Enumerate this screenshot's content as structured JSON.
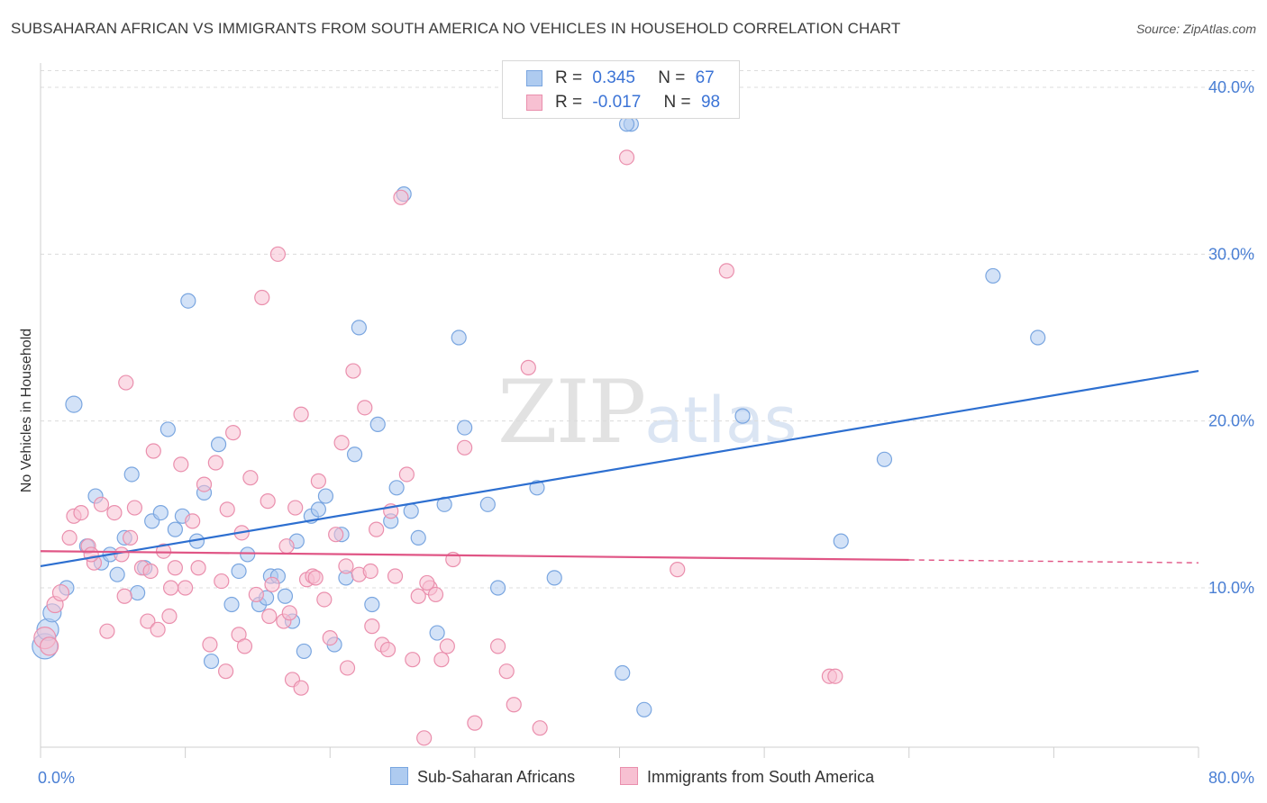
{
  "title": "SUBSAHARAN AFRICAN VS IMMIGRANTS FROM SOUTH AMERICA NO VEHICLES IN HOUSEHOLD CORRELATION CHART",
  "source": "Source: ZipAtlas.com",
  "watermark": {
    "zip": "ZIP",
    "atlas": "atlas"
  },
  "legend": {
    "rows": [
      {
        "r_label": "R =",
        "r_value": "0.345",
        "n_label": "N =",
        "n_value": "67",
        "color": "#aecbf0",
        "border": "#7aa6e0"
      },
      {
        "r_label": "R =",
        "r_value": "-0.017",
        "n_label": "N =",
        "n_value": "98",
        "color": "#f7c0d2",
        "border": "#ea8fad"
      }
    ]
  },
  "bottom_legend": {
    "series1": "Sub-Saharan Africans",
    "series2": "Immigrants from South America"
  },
  "chart_data": {
    "type": "scatter",
    "title": "SUBSAHARAN AFRICAN VS IMMIGRANTS FROM SOUTH AMERICA NO VEHICLES IN HOUSEHOLD CORRELATION CHART",
    "xlabel": "",
    "ylabel": "No Vehicles in Household",
    "xlim": [
      0,
      80
    ],
    "ylim": [
      0,
      41
    ],
    "x_tick_labels": [
      "0.0%",
      "80.0%"
    ],
    "y_ticks": [
      10,
      20,
      30,
      40
    ],
    "y_tick_labels": [
      "10.0%",
      "20.0%",
      "30.0%",
      "40.0%"
    ],
    "grid": true,
    "series": [
      {
        "name": "Sub-Saharan Africans",
        "color": "#7aa6e0",
        "fill": "#aecbf0",
        "trend": {
          "x": [
            0,
            80
          ],
          "y": [
            11.3,
            23.0
          ],
          "color": "#2d6fd0",
          "dash_from": null
        },
        "points": [
          [
            0.3,
            6.5,
            14
          ],
          [
            0.5,
            7.5,
            12
          ],
          [
            0.8,
            8.5,
            10
          ],
          [
            1.8,
            10.0,
            8
          ],
          [
            2.3,
            21.0,
            9
          ],
          [
            3.2,
            12.5,
            8
          ],
          [
            3.8,
            15.5,
            8
          ],
          [
            4.2,
            11.5,
            8
          ],
          [
            4.8,
            12.0,
            8
          ],
          [
            5.3,
            10.8,
            8
          ],
          [
            5.8,
            13.0,
            8
          ],
          [
            6.3,
            16.8,
            8
          ],
          [
            6.7,
            9.7,
            8
          ],
          [
            7.2,
            11.2,
            8
          ],
          [
            7.7,
            14.0,
            8
          ],
          [
            8.3,
            14.5,
            8
          ],
          [
            8.8,
            19.5,
            8
          ],
          [
            9.3,
            13.5,
            8
          ],
          [
            9.8,
            14.3,
            8
          ],
          [
            10.2,
            27.2,
            8
          ],
          [
            10.8,
            12.8,
            8
          ],
          [
            11.3,
            15.7,
            8
          ],
          [
            11.8,
            5.6,
            8
          ],
          [
            12.3,
            18.6,
            8
          ],
          [
            13.2,
            9.0,
            8
          ],
          [
            13.7,
            11.0,
            8
          ],
          [
            14.3,
            12.0,
            8
          ],
          [
            15.1,
            9.0,
            8
          ],
          [
            15.6,
            9.4,
            8
          ],
          [
            15.9,
            10.7,
            8
          ],
          [
            16.4,
            10.7,
            8
          ],
          [
            16.9,
            9.5,
            8
          ],
          [
            17.4,
            8.0,
            8
          ],
          [
            17.7,
            12.8,
            8
          ],
          [
            18.2,
            6.2,
            8
          ],
          [
            18.7,
            14.3,
            8
          ],
          [
            19.2,
            14.7,
            8
          ],
          [
            19.7,
            15.5,
            8
          ],
          [
            20.3,
            6.6,
            8
          ],
          [
            20.8,
            13.2,
            8
          ],
          [
            21.1,
            10.6,
            8
          ],
          [
            21.7,
            18.0,
            8
          ],
          [
            22.0,
            25.6,
            8
          ],
          [
            22.9,
            9.0,
            8
          ],
          [
            23.3,
            19.8,
            8
          ],
          [
            24.2,
            14.0,
            8
          ],
          [
            24.6,
            16.0,
            8
          ],
          [
            25.1,
            33.6,
            8
          ],
          [
            25.6,
            14.6,
            8
          ],
          [
            26.1,
            13.0,
            8
          ],
          [
            27.4,
            7.3,
            8
          ],
          [
            27.9,
            15.0,
            8
          ],
          [
            28.9,
            25.0,
            8
          ],
          [
            29.3,
            19.6,
            8
          ],
          [
            30.9,
            15.0,
            8
          ],
          [
            31.6,
            10.0,
            8
          ],
          [
            34.3,
            16.0,
            8
          ],
          [
            35.5,
            10.6,
            8
          ],
          [
            40.2,
            4.9,
            8
          ],
          [
            40.8,
            37.8,
            8
          ],
          [
            41.7,
            2.7,
            8
          ],
          [
            48.5,
            20.3,
            8
          ],
          [
            55.3,
            12.8,
            8
          ],
          [
            58.3,
            17.7,
            8
          ],
          [
            65.8,
            28.7,
            8
          ],
          [
            68.9,
            25.0,
            8
          ],
          [
            40.5,
            37.8,
            8
          ]
        ]
      },
      {
        "name": "Immigrants from South America",
        "color": "#ea8fad",
        "fill": "#f7c0d2",
        "trend": {
          "x": [
            0,
            80
          ],
          "y": [
            12.2,
            11.5
          ],
          "color": "#e05585",
          "dash_from": 60
        },
        "points": [
          [
            0.3,
            7.0,
            12
          ],
          [
            0.6,
            6.5,
            10
          ],
          [
            1.0,
            9.0,
            9
          ],
          [
            1.4,
            9.7,
            9
          ],
          [
            2.0,
            13.0,
            8
          ],
          [
            2.3,
            14.3,
            8
          ],
          [
            2.8,
            14.5,
            8
          ],
          [
            3.3,
            12.5,
            8
          ],
          [
            3.7,
            11.5,
            8
          ],
          [
            4.2,
            15.0,
            8
          ],
          [
            4.6,
            7.4,
            8
          ],
          [
            5.1,
            14.5,
            8
          ],
          [
            5.6,
            12.0,
            8
          ],
          [
            5.9,
            22.3,
            8
          ],
          [
            6.2,
            13.0,
            8
          ],
          [
            6.5,
            14.8,
            8
          ],
          [
            7.0,
            11.2,
            8
          ],
          [
            7.4,
            8.0,
            8
          ],
          [
            7.8,
            18.2,
            8
          ],
          [
            8.1,
            7.5,
            8
          ],
          [
            8.5,
            12.2,
            8
          ],
          [
            8.9,
            8.3,
            8
          ],
          [
            9.3,
            11.2,
            8
          ],
          [
            9.7,
            17.4,
            8
          ],
          [
            10.0,
            10.0,
            8
          ],
          [
            10.5,
            14.0,
            8
          ],
          [
            10.9,
            11.2,
            8
          ],
          [
            11.3,
            16.2,
            8
          ],
          [
            11.7,
            6.6,
            8
          ],
          [
            12.1,
            17.5,
            8
          ],
          [
            12.5,
            10.4,
            8
          ],
          [
            12.9,
            14.7,
            8
          ],
          [
            13.3,
            19.3,
            8
          ],
          [
            13.7,
            7.2,
            8
          ],
          [
            14.1,
            6.5,
            8
          ],
          [
            14.5,
            16.6,
            8
          ],
          [
            14.9,
            9.6,
            8
          ],
          [
            15.3,
            27.4,
            8
          ],
          [
            15.7,
            15.2,
            8
          ],
          [
            16.0,
            10.2,
            8
          ],
          [
            16.4,
            30.0,
            8
          ],
          [
            16.8,
            8.0,
            8
          ],
          [
            17.2,
            8.5,
            8
          ],
          [
            17.6,
            14.8,
            8
          ],
          [
            18.0,
            20.4,
            8
          ],
          [
            18.4,
            10.5,
            8
          ],
          [
            18.8,
            10.7,
            8
          ],
          [
            19.2,
            16.4,
            8
          ],
          [
            19.6,
            9.3,
            8
          ],
          [
            20.0,
            7.0,
            8
          ],
          [
            20.4,
            13.2,
            8
          ],
          [
            20.8,
            18.7,
            8
          ],
          [
            21.2,
            5.2,
            8
          ],
          [
            21.6,
            23.0,
            8
          ],
          [
            22.0,
            10.8,
            8
          ],
          [
            22.4,
            20.8,
            8
          ],
          [
            22.8,
            11.0,
            8
          ],
          [
            23.2,
            13.5,
            8
          ],
          [
            23.6,
            6.6,
            8
          ],
          [
            24.0,
            6.3,
            8
          ],
          [
            24.5,
            10.7,
            8
          ],
          [
            24.9,
            33.4,
            8
          ],
          [
            25.3,
            16.8,
            8
          ],
          [
            25.7,
            5.7,
            8
          ],
          [
            26.1,
            9.5,
            8
          ],
          [
            26.5,
            1.0,
            8
          ],
          [
            26.9,
            10.0,
            8
          ],
          [
            27.3,
            9.6,
            8
          ],
          [
            27.7,
            5.7,
            8
          ],
          [
            28.1,
            6.5,
            8
          ],
          [
            28.5,
            11.7,
            8
          ],
          [
            29.3,
            18.4,
            8
          ],
          [
            30.0,
            1.9,
            8
          ],
          [
            31.6,
            6.5,
            8
          ],
          [
            32.2,
            5.0,
            8
          ],
          [
            32.7,
            3.0,
            8
          ],
          [
            33.7,
            23.2,
            8
          ],
          [
            34.5,
            1.6,
            8
          ],
          [
            40.5,
            35.8,
            8
          ],
          [
            44.0,
            11.1,
            8
          ],
          [
            47.4,
            29.0,
            8
          ],
          [
            54.5,
            4.7,
            8
          ],
          [
            54.9,
            4.7,
            8
          ],
          [
            17.4,
            4.5,
            8
          ],
          [
            18.0,
            4.0,
            8
          ],
          [
            12.8,
            5.0,
            8
          ],
          [
            22.9,
            7.7,
            8
          ],
          [
            26.7,
            10.3,
            8
          ],
          [
            15.8,
            8.3,
            8
          ],
          [
            19.0,
            10.6,
            8
          ],
          [
            21.1,
            11.3,
            8
          ],
          [
            9.0,
            10.0,
            8
          ],
          [
            3.5,
            12.0,
            8
          ],
          [
            5.8,
            9.5,
            8
          ],
          [
            7.6,
            11.0,
            8
          ],
          [
            24.2,
            14.6,
            8
          ],
          [
            17.0,
            12.5,
            8
          ],
          [
            13.9,
            13.3,
            8
          ]
        ]
      }
    ]
  }
}
